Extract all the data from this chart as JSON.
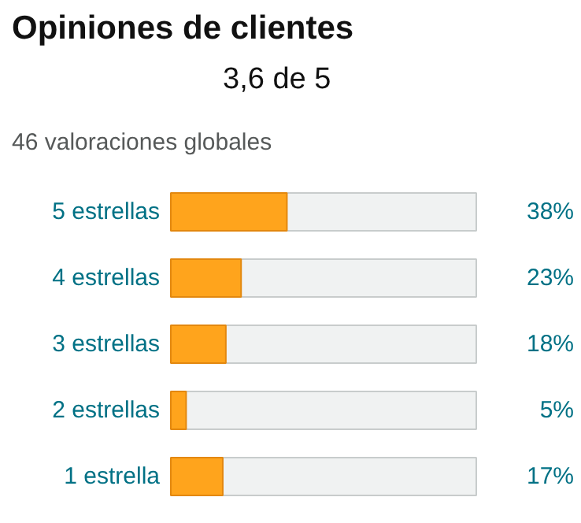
{
  "chart_data": {
    "type": "bar",
    "orientation": "horizontal",
    "title": "Opiniones de clientes",
    "subtitle": "46 valoraciones globales",
    "annotations": [
      "3,6 de 5"
    ],
    "categories": [
      "5 estrellas",
      "4 estrellas",
      "3 estrellas",
      "2 estrellas",
      "1 estrella"
    ],
    "xlim": [
      0,
      100
    ],
    "tick_labels": "y",
    "grid": false,
    "series": [
      {
        "color": "#ffa41c",
        "values": [
          38,
          23,
          18,
          5,
          17
        ],
        "value_labels": [
          "38%",
          "23%",
          "18%",
          "5%",
          "17%"
        ]
      }
    ]
  }
}
